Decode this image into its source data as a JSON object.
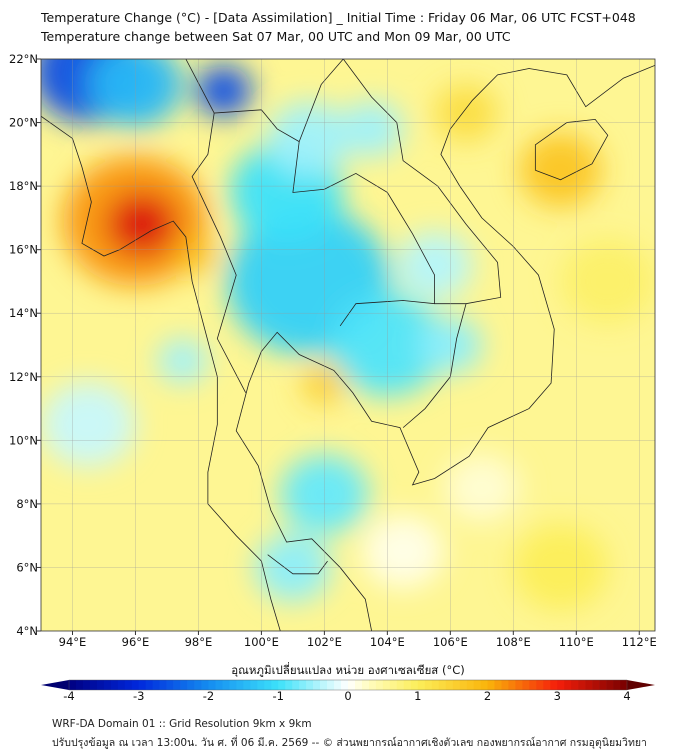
{
  "chart_data": {
    "type": "heatmap",
    "title": "Temperature Change (°C) - [Data Assimilation] _ Initial Time : Friday 06 Mar, 06 UTC FCST+048",
    "subtitle": "Temperature change between Sat 07 Mar, 00 UTC and Mon 09 Mar, 00 UTC",
    "xlim": [
      93,
      112.5
    ],
    "ylim": [
      4,
      22
    ],
    "x_ticks": [
      "94°E",
      "96°E",
      "98°E",
      "100°E",
      "102°E",
      "104°E",
      "106°E",
      "108°E",
      "110°E",
      "112°E"
    ],
    "x_tick_values": [
      94,
      96,
      98,
      100,
      102,
      104,
      106,
      108,
      110,
      112
    ],
    "y_ticks": [
      "22°N",
      "20°N",
      "18°N",
      "16°N",
      "14°N",
      "12°N",
      "10°N",
      "8°N",
      "6°N",
      "4°N"
    ],
    "y_tick_values": [
      22,
      20,
      18,
      16,
      14,
      12,
      10,
      8,
      6,
      4
    ],
    "grid": true,
    "background_value": 0.6,
    "field": [
      {
        "lon": 94.5,
        "lat": 21.6,
        "value": -2.6,
        "r": 1.8
      },
      {
        "lon": 96.0,
        "lat": 21.2,
        "value": -1.5,
        "r": 1.5
      },
      {
        "lon": 98.8,
        "lat": 21.0,
        "value": -2.6,
        "r": 0.9
      },
      {
        "lon": 96.0,
        "lat": 16.9,
        "value": 2.2,
        "r": 2.3
      },
      {
        "lon": 96.2,
        "lat": 16.8,
        "value": 3.2,
        "r": 1.1
      },
      {
        "lon": 98.0,
        "lat": 15.8,
        "value": 1.8,
        "r": 0.6
      },
      {
        "lon": 101.5,
        "lat": 15.0,
        "value": -1.2,
        "r": 2.6
      },
      {
        "lon": 100.8,
        "lat": 17.8,
        "value": -1.0,
        "r": 1.8
      },
      {
        "lon": 101.5,
        "lat": 19.5,
        "value": -0.5,
        "r": 1.3
      },
      {
        "lon": 104.0,
        "lat": 13.0,
        "value": -0.9,
        "r": 1.8
      },
      {
        "lon": 106.0,
        "lat": 13.0,
        "value": -0.6,
        "r": 1.0
      },
      {
        "lon": 105.5,
        "lat": 15.5,
        "value": -0.4,
        "r": 1.2
      },
      {
        "lon": 103.5,
        "lat": 19.8,
        "value": -0.5,
        "r": 1.0
      },
      {
        "lon": 109.5,
        "lat": 18.5,
        "value": 1.7,
        "r": 1.3
      },
      {
        "lon": 106.5,
        "lat": 20.3,
        "value": 1.3,
        "r": 1.0
      },
      {
        "lon": 102.0,
        "lat": 11.8,
        "value": 1.6,
        "r": 0.7
      },
      {
        "lon": 102.0,
        "lat": 8.3,
        "value": -0.8,
        "r": 1.4
      },
      {
        "lon": 101.0,
        "lat": 6.0,
        "value": -0.6,
        "r": 1.2
      },
      {
        "lon": 94.5,
        "lat": 10.5,
        "value": -0.3,
        "r": 1.5
      },
      {
        "lon": 97.5,
        "lat": 12.5,
        "value": -0.5,
        "r": 0.8
      },
      {
        "lon": 109.5,
        "lat": 6.0,
        "value": 1.0,
        "r": 1.5
      },
      {
        "lon": 111.0,
        "lat": 15.0,
        "value": 0.9,
        "r": 1.5
      },
      {
        "lon": 107.0,
        "lat": 8.5,
        "value": 0.2,
        "r": 1.2
      },
      {
        "lon": 104.5,
        "lat": 6.5,
        "value": 0.1,
        "r": 1.3
      }
    ],
    "colorbar": {
      "label": "อุณหภูมิเปลี่ยนแปลง หน่วย องศาเซลเซียส (°C)",
      "range": [
        -4,
        4
      ],
      "ticks": [
        "-4",
        "-3",
        "-2",
        "-1",
        "0",
        "1",
        "2",
        "3",
        "4"
      ],
      "tick_values": [
        -4,
        -3,
        -2,
        -1,
        0,
        1,
        2,
        3,
        4
      ]
    }
  },
  "footer": {
    "line1": "WRF-DA Domain 01 :: Grid Resolution 9km x 9km",
    "line2": "ปรับปรุงข้อมูล ณ เวลา 13:00น. วัน ศ. ที่ 06 มี.ค. 2569 -- © ส่วนพยากรณ์อากาศเชิงตัวเลข กองพยากรณ์อากาศ กรมอุตุนิยมวิทยา"
  }
}
